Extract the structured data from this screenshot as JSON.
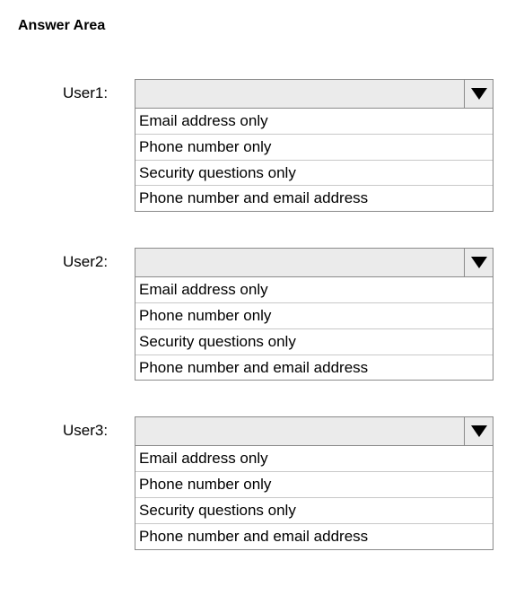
{
  "title": "Answer Area",
  "colors": {
    "select_bg": "#ebebeb",
    "border": "#8a8a8a",
    "option_divider": "#c8c8c8",
    "text": "#000000",
    "background": "#ffffff"
  },
  "typography": {
    "title_fontsize": 16,
    "title_weight": "bold",
    "label_fontsize": 17,
    "option_fontsize": 17,
    "font_family": "Arial"
  },
  "fields": [
    {
      "label": "User1:",
      "selected": "",
      "options": [
        "Email address only",
        "Phone number only",
        "Security questions only",
        "Phone number and email address"
      ]
    },
    {
      "label": "User2:",
      "selected": "",
      "options": [
        "Email address only",
        "Phone number only",
        "Security questions only",
        "Phone number and email address"
      ]
    },
    {
      "label": "User3:",
      "selected": "",
      "options": [
        "Email address only",
        "Phone number only",
        "Security questions only",
        "Phone number and email address"
      ]
    }
  ]
}
